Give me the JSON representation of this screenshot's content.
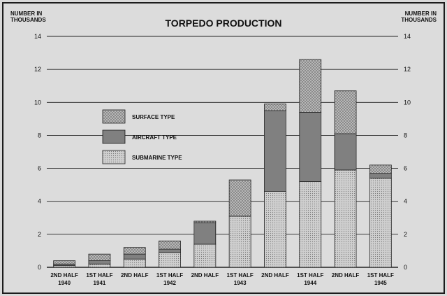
{
  "chart_data": {
    "type": "bar",
    "stacked": true,
    "title": "TORPEDO PRODUCTION",
    "ylabel_left": [
      "NUMBER IN",
      "THOUSANDS"
    ],
    "ylabel_right": [
      "NUMBER IN",
      "THOUSANDS"
    ],
    "ylim": [
      0,
      14
    ],
    "yticks": [
      0,
      2,
      4,
      6,
      8,
      10,
      12,
      14
    ],
    "grid": true,
    "legend_position": "upper-left",
    "categories": [
      [
        "2ND HALF",
        "1940"
      ],
      [
        "1ST HALF",
        "1941"
      ],
      [
        "2ND HALF",
        ""
      ],
      [
        "1ST HALF",
        "1942"
      ],
      [
        "2ND HALF",
        ""
      ],
      [
        "1ST HALF",
        "1943"
      ],
      [
        "2ND HALF",
        ""
      ],
      [
        "1ST HALF",
        "1944"
      ],
      [
        "2ND HALF",
        ""
      ],
      [
        "1ST HALF",
        "1945"
      ]
    ],
    "series": [
      {
        "name": "SUBMARINE TYPE",
        "pattern": "dots",
        "color": "#c9c9c9",
        "values": [
          0.1,
          0.2,
          0.5,
          0.9,
          1.4,
          3.1,
          4.6,
          5.2,
          5.9,
          5.4
        ]
      },
      {
        "name": "AIRCRAFT TYPE",
        "pattern": "lines",
        "color": "#8f8f8f",
        "values": [
          0.1,
          0.2,
          0.3,
          0.2,
          1.3,
          0.0,
          4.9,
          4.2,
          2.2,
          0.3
        ]
      },
      {
        "name": "SURFACE TYPE",
        "pattern": "crosshatch",
        "color": "#b3b3b3",
        "values": [
          0.2,
          0.4,
          0.4,
          0.5,
          0.1,
          2.2,
          0.4,
          3.2,
          2.6,
          0.5
        ]
      }
    ],
    "legend_order": [
      "SURFACE TYPE",
      "AIRCRAFT TYPE",
      "SUBMARINE TYPE"
    ]
  }
}
